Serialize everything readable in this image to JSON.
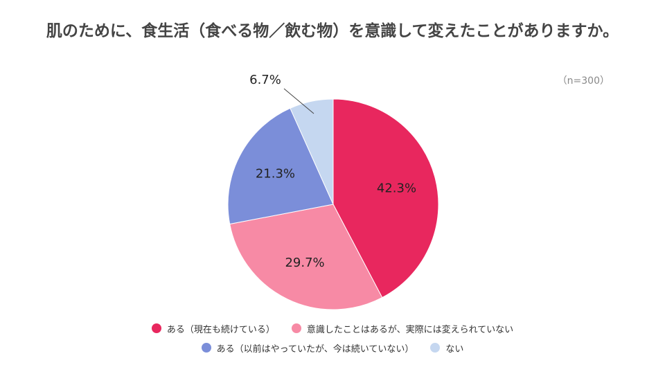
{
  "chart_data": {
    "type": "pie",
    "title": "肌のために、食生活（食べる物／飲む物）を意識して変えたことがありますか。",
    "note": "（n=300）",
    "slices": [
      {
        "label": "ある（現在も続けている）",
        "value": 42.3,
        "display": "42.3%",
        "color": "#e8275e"
      },
      {
        "label": "意識したことはあるが、実際には変えられていない",
        "value": 29.7,
        "display": "29.7%",
        "color": "#f78aa5"
      },
      {
        "label": "ある（以前はやっていたが、今は続いていない）",
        "value": 21.3,
        "display": "21.3%",
        "color": "#7b8ed9"
      },
      {
        "label": "ない",
        "value": 6.7,
        "display": "6.7%",
        "color": "#c5d7f0"
      }
    ],
    "legend_position": "bottom"
  }
}
